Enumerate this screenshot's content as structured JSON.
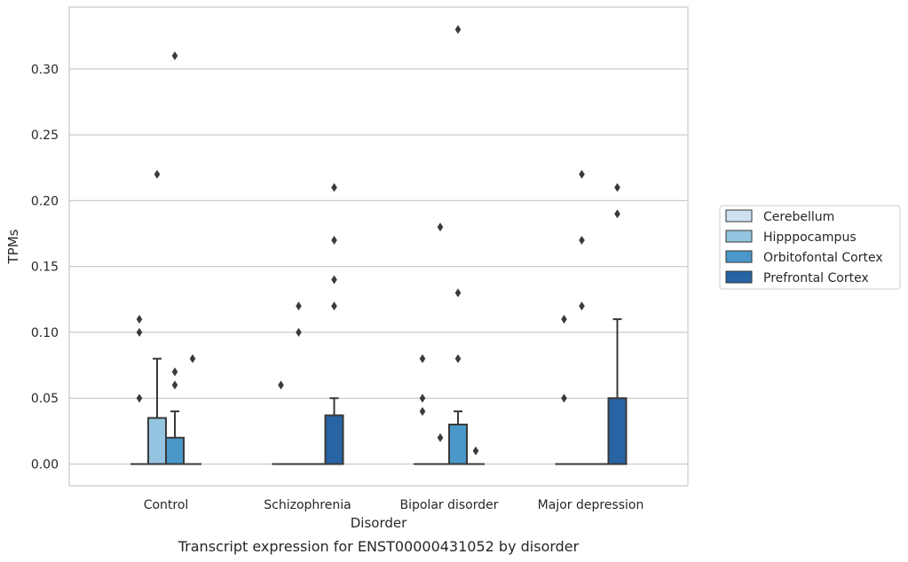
{
  "chart_data": {
    "type": "box",
    "title": "",
    "caption": "Transcript expression for ENST00000431052 by disorder",
    "xlabel": "Disorder",
    "ylabel": "TPMs",
    "ylim": [
      -0.0165,
      0.347
    ],
    "yticks": [
      "0.00",
      "0.05",
      "0.10",
      "0.15",
      "0.20",
      "0.25",
      "0.30"
    ],
    "ytick_values": [
      0,
      0.05,
      0.1,
      0.15,
      0.2,
      0.25,
      0.3
    ],
    "grid": "horizontal",
    "legend_position": "right",
    "categories": [
      "Control",
      "Schizophrenia",
      "Bipolar disorder",
      "Major depression"
    ],
    "series": [
      {
        "name": "Cerebellum",
        "color": "#d0e1f2",
        "boxes": [
          {
            "q1": 0,
            "median": 0,
            "q3": 0,
            "whisker_low": 0,
            "whisker_high": 0,
            "outliers": []
          },
          {
            "q1": 0,
            "median": 0,
            "q3": 0,
            "whisker_low": 0,
            "whisker_high": 0,
            "outliers": []
          },
          {
            "q1": 0,
            "median": 0,
            "q3": 0,
            "whisker_low": 0,
            "whisker_high": 0,
            "outliers": []
          },
          {
            "q1": 0,
            "median": 0,
            "q3": 0,
            "whisker_low": 0,
            "whisker_high": 0,
            "outliers": []
          }
        ]
      },
      {
        "name": "Hipppocampus",
        "color": "#94c4df",
        "boxes": [
          {
            "q1": 0,
            "median": 0,
            "q3": 0.035,
            "whisker_low": 0,
            "whisker_high": 0.08,
            "outliers": [
              0.22
            ]
          },
          {
            "q1": 0,
            "median": 0,
            "q3": 0,
            "whisker_low": 0,
            "whisker_high": 0,
            "outliers": [
              0.1,
              0.12
            ]
          },
          {
            "q1": 0,
            "median": 0,
            "q3": 0,
            "whisker_low": 0,
            "whisker_high": 0,
            "outliers": [
              0.18
            ]
          },
          {
            "q1": 0,
            "median": 0,
            "q3": 0,
            "whisker_low": 0,
            "whisker_high": 0,
            "outliers": [
              0.12,
              0.17,
              0.22
            ]
          }
        ]
      },
      {
        "name": "Orbitofontal Cortex",
        "color": "#4a98c9",
        "boxes": [
          {
            "q1": 0,
            "median": 0,
            "q3": 0.02,
            "whisker_low": 0,
            "whisker_high": 0.04,
            "outliers": [
              0.06,
              0.07,
              0.31
            ]
          },
          {
            "q1": 0,
            "median": 0,
            "q3": 0,
            "whisker_low": 0,
            "whisker_high": 0,
            "outliers": []
          },
          {
            "q1": 0,
            "median": 0,
            "q3": 0.03,
            "whisker_low": 0,
            "whisker_high": 0.04,
            "outliers": [
              0.08,
              0.13,
              0.33
            ]
          },
          {
            "q1": 0,
            "median": 0,
            "q3": 0,
            "whisker_low": 0,
            "whisker_high": 0,
            "outliers": []
          }
        ]
      },
      {
        "name": "Prefrontal Cortex",
        "color": "#2664a4",
        "boxes": [
          {
            "q1": 0,
            "median": 0,
            "q3": 0,
            "whisker_low": 0,
            "whisker_high": 0,
            "outliers": []
          },
          {
            "q1": 0,
            "median": 0,
            "q3": 0.037,
            "whisker_low": 0,
            "whisker_high": 0.05,
            "outliers": [
              0.12,
              0.14,
              0.17,
              0.21
            ]
          },
          {
            "q1": 0,
            "median": 0,
            "q3": 0,
            "whisker_low": 0,
            "whisker_high": 0,
            "outliers": []
          },
          {
            "q1": 0,
            "median": 0,
            "q3": 0.05,
            "whisker_low": 0,
            "whisker_high": 0.11,
            "outliers": [
              0.19,
              0.21
            ]
          }
        ]
      }
    ],
    "extra_outliers_by_category": [
      {
        "category": "Control",
        "values": [
          0.05,
          0.1,
          0.11
        ],
        "series": "Cerebellum"
      },
      {
        "category": "Control",
        "values": [
          0.08
        ],
        "series": "Prefrontal Cortex"
      },
      {
        "category": "Schizophrenia",
        "values": [
          0.06
        ],
        "series": "Cerebellum"
      },
      {
        "category": "Bipolar disorder",
        "values": [
          0.04,
          0.05,
          0.08
        ],
        "series": "Cerebellum"
      },
      {
        "category": "Bipolar disorder",
        "values": [
          0.02
        ],
        "series": "Hipppocampus"
      },
      {
        "category": "Bipolar disorder",
        "values": [
          0.01
        ],
        "series": "Prefrontal Cortex"
      },
      {
        "category": "Major depression",
        "values": [
          0.05,
          0.11
        ],
        "series": "Cerebellum"
      }
    ]
  }
}
